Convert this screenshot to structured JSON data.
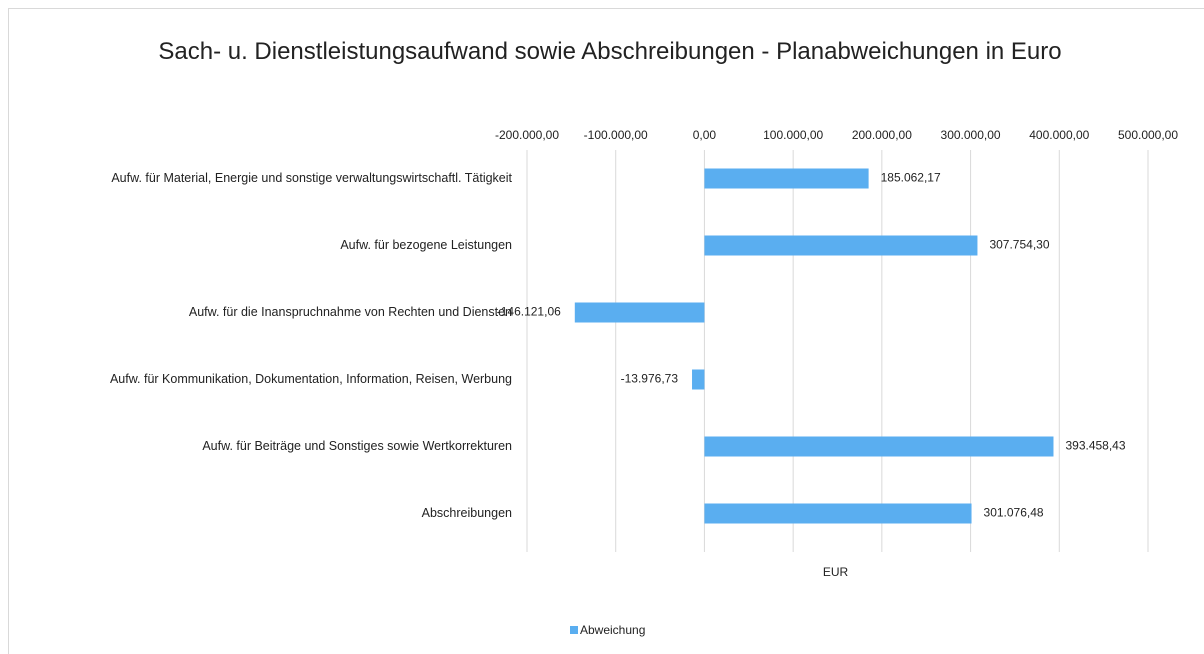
{
  "chart_data": {
    "type": "bar",
    "orientation": "horizontal",
    "title": "Sach- u. Dienstleistungsaufwand sowie Abschreibungen - Planabweichungen in Euro",
    "categories": [
      "Aufw. für Material, Energie und sonstige verwaltungswirtschaftl. Tätigkeit",
      "Aufw. für bezogene Leistungen",
      "Aufw. für die Inanspruchnahme von Rechten und Diensten",
      "Aufw. für Kommunikation, Dokumentation, Information, Reisen, Werbung",
      "Aufw. für Beiträge und Sonstiges sowie Wertkorrekturen",
      "Abschreibungen"
    ],
    "series": [
      {
        "name": "Abweichung",
        "color": "#5aaef0",
        "values": [
          185062.17,
          307754.3,
          -146121.06,
          -13976.73,
          393458.43,
          301076.48
        ],
        "value_labels": [
          "185.062,17",
          "307.754,30",
          "-146.121,06",
          "-13.976,73",
          "393.458,43",
          "301.076,48"
        ]
      }
    ],
    "xlabel": "EUR",
    "xlim": [
      -200000,
      500000
    ],
    "xticks": [
      {
        "value": -200000,
        "label": "-200.000,00"
      },
      {
        "value": -100000,
        "label": "-100.000,00"
      },
      {
        "value": 0,
        "label": "0,00"
      },
      {
        "value": 100000,
        "label": "100.000,00"
      },
      {
        "value": 200000,
        "label": "200.000,00"
      },
      {
        "value": 300000,
        "label": "300.000,00"
      },
      {
        "value": 400000,
        "label": "400.000,00"
      },
      {
        "value": 500000,
        "label": "500.000,00"
      }
    ],
    "grid": true,
    "legend": "bottom"
  }
}
